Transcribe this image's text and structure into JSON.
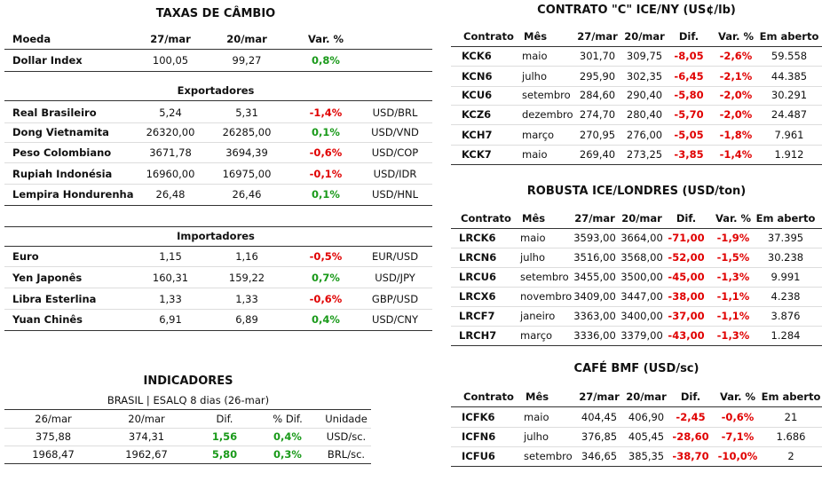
{
  "exchange": {
    "title": "TAXAS DE CÂMBIO",
    "header": [
      "Moeda",
      "27/mar",
      "20/mar",
      "Var. %"
    ],
    "rows": [
      [
        "Dollar Index",
        "100,05",
        "99,27",
        "0,8%"
      ]
    ],
    "groups": [
      {
        "title": "Exportadores",
        "rows": [
          [
            "Real Brasileiro",
            "5,24",
            "5,31",
            "-1,4%",
            "USD/BRL"
          ],
          [
            "Dong Vietnamita",
            "26320,00",
            "26285,00",
            "0,1%",
            "USD/VND"
          ],
          [
            "Peso Colombiano",
            "3671,78",
            "3694,39",
            "-0,6%",
            "USD/COP"
          ],
          [
            "Rupiah Indonésia",
            "16960,00",
            "16975,00",
            "-0,1%",
            "USD/IDR"
          ],
          [
            "Lempira Hondurenha",
            "26,48",
            "26,46",
            "0,1%",
            "USD/HNL"
          ]
        ]
      },
      {
        "title": "Importadores",
        "rows": [
          [
            "Euro",
            "1,15",
            "1,16",
            "-0,5%",
            "EUR/USD"
          ],
          [
            "Yen Japonês",
            "160,31",
            "159,22",
            "0,7%",
            "USD/JPY"
          ],
          [
            "Libra Esterlina",
            "1,33",
            "1,33",
            "-0,6%",
            "GBP/USD"
          ],
          [
            "Yuan Chinês",
            "6,91",
            "6,89",
            "0,4%",
            "USD/CNY"
          ]
        ]
      }
    ]
  },
  "indicators": {
    "title": "INDICADORES",
    "subtitle": "BRASIL | ESALQ 8 dias (26-mar)",
    "header": [
      "26/mar",
      "20/mar",
      "Dif.",
      "% Dif.",
      "Unidade"
    ],
    "rows": [
      [
        "375,88",
        "374,31",
        "1,56",
        "0,4%",
        "USD/sc."
      ],
      [
        "1968,47",
        "1962,67",
        "5,80",
        "0,3%",
        "BRL/sc."
      ]
    ]
  },
  "arabica": {
    "title": "CONTRATO \"C\" ICE/NY (US¢/lb)",
    "header": [
      "Contrato",
      "Mês",
      "27/mar",
      "20/mar",
      "Dif.",
      "Var. %",
      "Em aberto"
    ],
    "rows": [
      [
        "KCK6",
        "maio",
        "301,70",
        "309,75",
        "-8,05",
        "-2,6%",
        "59.558"
      ],
      [
        "KCN6",
        "julho",
        "295,90",
        "302,35",
        "-6,45",
        "-2,1%",
        "44.385"
      ],
      [
        "KCU6",
        "setembro",
        "284,60",
        "290,40",
        "-5,80",
        "-2,0%",
        "30.291"
      ],
      [
        "KCZ6",
        "dezembro",
        "274,70",
        "280,40",
        "-5,70",
        "-2,0%",
        "24.487"
      ],
      [
        "KCH7",
        "março",
        "270,95",
        "276,00",
        "-5,05",
        "-1,8%",
        "7.961"
      ],
      [
        "KCK7",
        "maio",
        "269,40",
        "273,25",
        "-3,85",
        "-1,4%",
        "1.912"
      ]
    ]
  },
  "robusta": {
    "title": "ROBUSTA ICE/LONDRES (USD/ton)",
    "header": [
      "Contrato",
      "Mês",
      "27/mar",
      "20/mar",
      "Dif.",
      "Var. %",
      "Em aberto"
    ],
    "rows": [
      [
        "LRCK6",
        "maio",
        "3593,00",
        "3664,00",
        "-71,00",
        "-1,9%",
        "37.395"
      ],
      [
        "LRCN6",
        "julho",
        "3516,00",
        "3568,00",
        "-52,00",
        "-1,5%",
        "30.238"
      ],
      [
        "LRCU6",
        "setembro",
        "3455,00",
        "3500,00",
        "-45,00",
        "-1,3%",
        "9.991"
      ],
      [
        "LRCX6",
        "novembro",
        "3409,00",
        "3447,00",
        "-38,00",
        "-1,1%",
        "4.238"
      ],
      [
        "LRCF7",
        "janeiro",
        "3363,00",
        "3400,00",
        "-37,00",
        "-1,1%",
        "3.876"
      ],
      [
        "LRCH7",
        "março",
        "3336,00",
        "3379,00",
        "-43,00",
        "-1,3%",
        "1.284"
      ]
    ]
  },
  "bmf": {
    "title": "CAFÉ BMF (USD/sc)",
    "header": [
      "Contrato",
      "Mês",
      "27/mar",
      "20/mar",
      "Dif.",
      "Var. %",
      "Em aberto"
    ],
    "rows": [
      [
        "ICFK6",
        "maio",
        "404,45",
        "406,90",
        "-2,45",
        "-0,6%",
        "21"
      ],
      [
        "ICFN6",
        "julho",
        "376,85",
        "405,45",
        "-28,60",
        "-7,1%",
        "1.686"
      ],
      [
        "ICFU6",
        "setembro",
        "346,65",
        "385,35",
        "-38,70",
        "-10,0%",
        "2"
      ]
    ]
  }
}
